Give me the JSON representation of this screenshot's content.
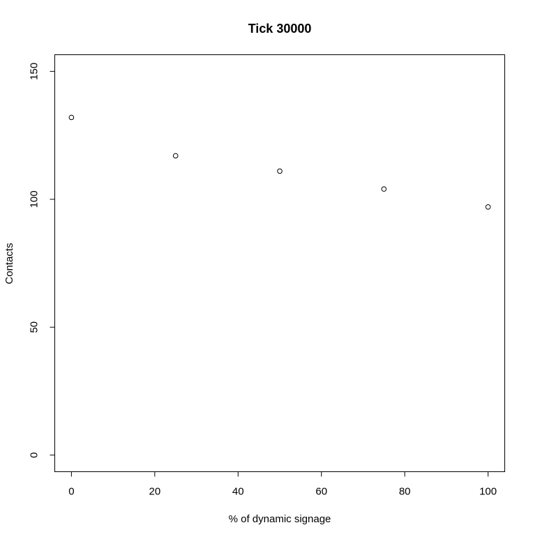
{
  "chart_data": {
    "type": "scatter",
    "title": "Tick 30000",
    "xlabel": "% of dynamic signage",
    "ylabel": "Contacts",
    "x": [
      0,
      25,
      50,
      75,
      100
    ],
    "y": [
      132,
      117,
      111,
      104,
      97
    ],
    "xticks": [
      0,
      20,
      40,
      60,
      80,
      100
    ],
    "yticks": [
      0,
      50,
      100,
      150
    ],
    "xlim": [
      -4,
      104
    ],
    "ylim": [
      -6.5,
      156.5
    ],
    "grid": false,
    "marker": "open-circle",
    "color": "#000000"
  }
}
